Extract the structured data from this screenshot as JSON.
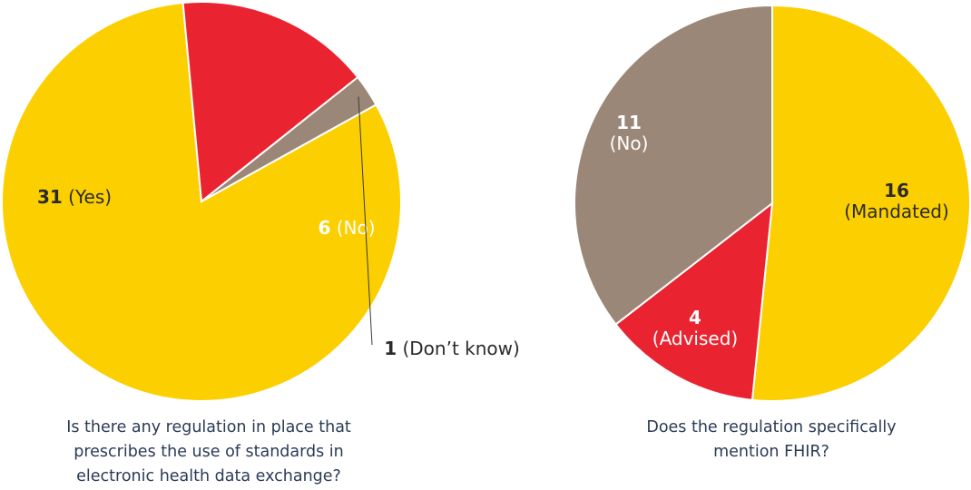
{
  "chart_data": [
    {
      "type": "pie",
      "title_lines": [
        "Is there any regulation in place that",
        "prescribes the use of standards in",
        "electronic health data exchange?"
      ],
      "slices": [
        {
          "value": 31,
          "count_label": "31",
          "category_label": "(Yes)",
          "color": "#fccf00"
        },
        {
          "value": 6,
          "count_label": "6",
          "category_label": "(No)",
          "color": "#ea2330"
        },
        {
          "value": 1,
          "count_label": "1",
          "category_label": "(Don’t know)",
          "color": "#9b8777"
        }
      ]
    },
    {
      "type": "pie",
      "title_lines": [
        "Does the regulation specifically",
        "mention FHIR?"
      ],
      "slices": [
        {
          "value": 16,
          "count_label": "16",
          "category_label": "(Mandated)",
          "color": "#fccf00"
        },
        {
          "value": 4,
          "count_label": "4",
          "category_label": "(Advised)",
          "color": "#ea2330"
        },
        {
          "value": 11,
          "count_label": "11",
          "category_label": "(No)",
          "color": "#9b8777"
        }
      ]
    }
  ]
}
